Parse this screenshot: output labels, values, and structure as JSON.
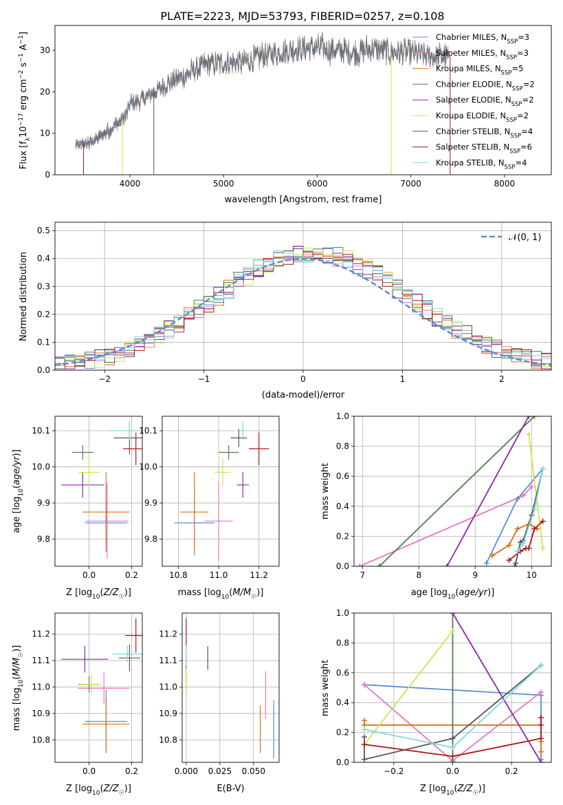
{
  "figure": {
    "title": "PLATE=2223, MJD=53793, FIBERID=0257, z=0.108"
  },
  "colors": {
    "chabrier_miles": "#5b8bd8",
    "salpeter_miles": "#e377c2",
    "kroupa_miles": "#e06b12",
    "chabrier_elodie": "#4a7f4a",
    "salpeter_elodie": "#8e24aa",
    "kroupa_elodie": "#cde44a",
    "chabrier_stelib": "#555555",
    "salpeter_stelib": "#b01515",
    "kroupa_stelib": "#7fd8dc",
    "model_default": "#e06b12",
    "data_line": "#777777",
    "normal_curve": "#5b8bd8"
  },
  "chart_data": [
    {
      "id": "spectrum",
      "type": "line",
      "title": "PLATE=2223, MJD=53793, FIBERID=0257, z=0.108",
      "xlabel": "wavelength [Angstrom, rest frame]",
      "ylabel": "Flux [f_λ 10^-17 erg cm^-2 s^-1 A^-1]",
      "xlim": [
        3200,
        8500
      ],
      "ylim": [
        0,
        36
      ],
      "xticks": [
        4000,
        5000,
        6000,
        7000,
        8000
      ],
      "yticks": [
        0,
        10,
        20,
        30
      ],
      "grid": false,
      "legend_position": "top-right",
      "continuum": {
        "x": [
          3420,
          3600,
          3800,
          3950,
          4000,
          4200,
          4400,
          4600,
          4800,
          5000,
          5200,
          5400,
          5600,
          5800,
          6000,
          6200,
          6400,
          6600,
          6800,
          7000,
          7200,
          7300,
          7400
        ],
        "y": [
          7,
          8,
          11,
          14,
          17,
          19,
          22,
          24,
          26.5,
          27,
          27,
          28.5,
          29.5,
          30.5,
          30.5,
          30,
          29.5,
          30.5,
          29.5,
          29.5,
          28.5,
          28.5,
          28.5
        ]
      },
      "series": [
        {
          "name": "Chabrier MILES, N_SSP=3",
          "label_main": "Chabrier MILES, N",
          "label_sub": "SSP",
          "label_tail": "=3",
          "color_key": "chabrier_miles"
        },
        {
          "name": "Salpeter MILES, N_SSP=3",
          "label_main": "Salpeter MILES, N",
          "label_sub": "SSP",
          "label_tail": "=3",
          "color_key": "salpeter_miles"
        },
        {
          "name": "Kroupa MILES, N_SSP=5",
          "label_main": "Kroupa MILES, N",
          "label_sub": "SSP",
          "label_tail": "=5",
          "color_key": "kroupa_miles"
        },
        {
          "name": "Chabrier ELODIE, N_SSP=2",
          "label_main": "Chabrier ELODIE, N",
          "label_sub": "SSP",
          "label_tail": "=2",
          "color_key": "chabrier_elodie"
        },
        {
          "name": "Salpeter ELODIE, N_SSP=2",
          "label_main": "Salpeter ELODIE, N",
          "label_sub": "SSP",
          "label_tail": "=2",
          "color_key": "salpeter_elodie"
        },
        {
          "name": "Kroupa ELODIE, N_SSP=2",
          "label_main": "Kroupa ELODIE, N",
          "label_sub": "SSP",
          "label_tail": "=2",
          "color_key": "kroupa_elodie"
        },
        {
          "name": "Chabrier STELIB, N_SSP=4",
          "label_main": "Chabrier STELIB, N",
          "label_sub": "SSP",
          "label_tail": "=4",
          "color_key": "chabrier_stelib"
        },
        {
          "name": "Salpeter STELIB, N_SSP=6",
          "label_main": "Salpeter STELIB, N",
          "label_sub": "SSP",
          "label_tail": "=6",
          "color_key": "salpeter_stelib"
        },
        {
          "name": "Kroupa STELIB, N_SSP=4",
          "label_main": "Kroupa STELIB, N",
          "label_sub": "SSP",
          "label_tail": "=4",
          "color_key": "kroupa_stelib"
        }
      ]
    },
    {
      "id": "residuals",
      "type": "line",
      "xlabel": "(data-model)/error",
      "ylabel": "Normed distribution",
      "xlim": [
        -2.5,
        2.5
      ],
      "ylim": [
        0,
        0.53
      ],
      "xticks": [
        -2,
        -1,
        0,
        1,
        2
      ],
      "yticks": [
        0.0,
        0.1,
        0.2,
        0.3,
        0.4,
        0.5
      ],
      "grid": true,
      "legend_position": "top-right",
      "normal_label": "𝒩(0, 1)",
      "bin_width": 0.1
    },
    {
      "id": "age_vs_Z",
      "type": "scatter",
      "xlabel": "Z [log10(Z/Z☉)]",
      "ylabel": "age [log10(age/yr)]",
      "xlim": [
        -0.16,
        0.25
      ],
      "ylim": [
        9.725,
        10.14
      ],
      "xticks": [
        0.0,
        0.2
      ],
      "yticks": [
        9.8,
        9.9,
        10.0,
        10.1
      ],
      "grid": true,
      "points": [
        {
          "color_key": "chabrier_miles",
          "x": 0.08,
          "xerr": 0.1,
          "y": 9.845,
          "yerr": 0.055
        },
        {
          "color_key": "salpeter_miles",
          "x": 0.085,
          "xerr": 0.1,
          "y": 9.85,
          "yerr": 0.105
        },
        {
          "color_key": "kroupa_miles",
          "x": 0.08,
          "xerr": 0.11,
          "y": 9.875,
          "yerr": 0.11
        },
        {
          "color_key": "chabrier_elodie",
          "x": -0.03,
          "xerr": 0.05,
          "y": 10.04,
          "yerr": 0.02
        },
        {
          "color_key": "salpeter_elodie",
          "x": -0.03,
          "xerr": 0.1,
          "y": 9.95,
          "yerr": 0.035
        },
        {
          "color_key": "kroupa_elodie",
          "x": 0.0,
          "xerr": 0.05,
          "y": 9.985,
          "yerr": 0.04
        },
        {
          "color_key": "chabrier_stelib",
          "x": 0.19,
          "xerr": 0.075,
          "y": 10.08,
          "yerr": 0.045
        },
        {
          "color_key": "salpeter_stelib",
          "x": 0.22,
          "xerr": 0.06,
          "y": 10.05,
          "yerr": 0.045
        },
        {
          "color_key": "kroupa_stelib",
          "x": 0.19,
          "xerr": 0.1,
          "y": 10.1,
          "yerr": 0.025
        }
      ]
    },
    {
      "id": "age_vs_mass",
      "type": "scatter",
      "xlabel": "mass [log10(M/M☉)]",
      "ylabel": "",
      "xlim": [
        10.72,
        11.3
      ],
      "ylim": [
        9.725,
        10.14
      ],
      "xticks": [
        10.8,
        11.0,
        11.2
      ],
      "yticks": [
        9.8,
        9.9,
        10.0,
        10.1
      ],
      "grid": true,
      "points": [
        {
          "color_key": "chabrier_miles",
          "x": 10.88,
          "xerr": 0.1,
          "y": 9.845,
          "yerr": 0.09
        },
        {
          "color_key": "salpeter_miles",
          "x": 11.0,
          "xerr": 0.07,
          "y": 9.85,
          "yerr": 0.11
        },
        {
          "color_key": "kroupa_miles",
          "x": 10.88,
          "xerr": 0.07,
          "y": 9.875,
          "yerr": 0.11
        },
        {
          "color_key": "chabrier_elodie",
          "x": 11.05,
          "xerr": 0.05,
          "y": 10.04,
          "yerr": 0.02
        },
        {
          "color_key": "salpeter_elodie",
          "x": 11.12,
          "xerr": 0.03,
          "y": 9.95,
          "yerr": 0.035
        },
        {
          "color_key": "kroupa_elodie",
          "x": 11.02,
          "xerr": 0.04,
          "y": 9.985,
          "yerr": 0.04
        },
        {
          "color_key": "chabrier_stelib",
          "x": 11.1,
          "xerr": 0.04,
          "y": 10.08,
          "yerr": 0.025
        },
        {
          "color_key": "salpeter_stelib",
          "x": 11.2,
          "xerr": 0.05,
          "y": 10.05,
          "yerr": 0.045
        },
        {
          "color_key": "kroupa_stelib",
          "x": 11.12,
          "xerr": 0.02,
          "y": 10.1,
          "yerr": 0.025
        }
      ]
    },
    {
      "id": "weight_vs_age",
      "type": "line",
      "xlabel": "age [log10(age/yr)]",
      "ylabel": "mass weight",
      "xlim": [
        6.85,
        10.35
      ],
      "ylim": [
        0,
        1
      ],
      "xticks": [
        7,
        8,
        9,
        10
      ],
      "yticks": [
        0.0,
        0.2,
        0.4,
        0.6,
        0.8,
        1.0
      ],
      "grid": true,
      "series": [
        {
          "color_key": "salpeter_miles",
          "x": [
            6.95,
            9.85,
            10.0
          ],
          "y": [
            0.0,
            0.47,
            0.53
          ]
        },
        {
          "color_key": "chabrier_miles",
          "x": [
            9.2,
            9.75,
            10.2
          ],
          "y": [
            0.02,
            0.45,
            0.65
          ]
        },
        {
          "color_key": "kroupa_miles",
          "x": [
            9.3,
            9.6,
            9.75,
            9.95,
            10.1
          ],
          "y": [
            0.07,
            0.14,
            0.25,
            0.28,
            0.25
          ]
        },
        {
          "color_key": "chabrier_elodie",
          "x": [
            7.3,
            10.05
          ],
          "y": [
            0.0,
            1.0
          ]
        },
        {
          "color_key": "salpeter_elodie",
          "x": [
            8.5,
            9.95
          ],
          "y": [
            0.0,
            1.0
          ]
        },
        {
          "color_key": "kroupa_elodie",
          "x": [
            9.95,
            10.2
          ],
          "y": [
            0.88,
            0.12
          ]
        },
        {
          "color_key": "chabrier_stelib",
          "x": [
            9.7,
            9.72,
            9.8,
            9.85,
            10.0,
            10.2
          ],
          "y": [
            0.0,
            0.02,
            0.16,
            0.17,
            0.34,
            0.65
          ]
        },
        {
          "color_key": "salpeter_stelib",
          "x": [
            9.6,
            9.8,
            9.9,
            9.95,
            10.05,
            10.2
          ],
          "y": [
            0.04,
            0.1,
            0.12,
            0.12,
            0.25,
            0.3
          ]
        },
        {
          "color_key": "kroupa_stelib",
          "x": [
            9.75,
            9.85,
            10.05,
            10.2
          ],
          "y": [
            0.1,
            0.15,
            0.38,
            0.65
          ]
        }
      ]
    },
    {
      "id": "mass_vs_Z",
      "type": "scatter",
      "xlabel": "Z [log10(Z/Z☉)]",
      "ylabel": "mass [log10(M/M☉)]",
      "xlim": [
        -0.16,
        0.25
      ],
      "ylim": [
        10.715,
        11.28
      ],
      "xticks": [
        0.0,
        0.2
      ],
      "yticks": [
        10.8,
        10.9,
        11.0,
        11.1,
        11.2
      ],
      "grid": true,
      "points": [
        {
          "color_key": "chabrier_miles",
          "x": 0.08,
          "xerr": 0.1,
          "y": 10.87,
          "yerr": 0.12
        },
        {
          "color_key": "salpeter_miles",
          "x": 0.07,
          "xerr": 0.12,
          "y": 10.995,
          "yerr": 0.06
        },
        {
          "color_key": "kroupa_miles",
          "x": 0.08,
          "xerr": 0.11,
          "y": 10.86,
          "yerr": 0.1
        },
        {
          "color_key": "chabrier_elodie",
          "x": 0.0,
          "xerr": 0.05,
          "y": 11.01,
          "yerr": 0.03
        },
        {
          "color_key": "salpeter_elodie",
          "x": -0.02,
          "xerr": 0.11,
          "y": 11.105,
          "yerr": 0.05
        },
        {
          "color_key": "kroupa_elodie",
          "x": 0.01,
          "xerr": 0.05,
          "y": 11.01,
          "yerr": 0.035
        },
        {
          "color_key": "chabrier_stelib",
          "x": 0.19,
          "xerr": 0.05,
          "y": 11.11,
          "yerr": 0.05
        },
        {
          "color_key": "salpeter_stelib",
          "x": 0.22,
          "xerr": 0.05,
          "y": 11.195,
          "yerr": 0.065
        },
        {
          "color_key": "kroupa_stelib",
          "x": 0.18,
          "xerr": 0.07,
          "y": 11.125,
          "yerr": 0.03
        }
      ]
    },
    {
      "id": "mass_vs_ebv",
      "type": "scatter",
      "xlabel": "E(B-V)",
      "ylabel": "",
      "xlim": [
        -0.003,
        0.069
      ],
      "ylim": [
        10.715,
        11.28
      ],
      "xticks": [
        0.0,
        0.025,
        0.05
      ],
      "yticks": [
        10.8,
        10.9,
        11.0,
        11.1,
        11.2
      ],
      "grid": true,
      "points": [
        {
          "color_key": "chabrier_miles",
          "x": 0.065,
          "xerr": 0,
          "y": 10.84,
          "yerr": 0.11
        },
        {
          "color_key": "salpeter_miles",
          "x": 0.059,
          "xerr": 0,
          "y": 10.97,
          "yerr": 0.09
        },
        {
          "color_key": "kroupa_miles",
          "x": 0.055,
          "xerr": 0,
          "y": 10.84,
          "yerr": 0.09
        },
        {
          "color_key": "chabrier_elodie",
          "x": 0.0,
          "xerr": 0,
          "y": 11.04,
          "yerr": 0.05
        },
        {
          "color_key": "salpeter_elodie",
          "x": 0.0,
          "xerr": 0,
          "y": 11.1,
          "yerr": 0.02
        },
        {
          "color_key": "kroupa_elodie",
          "x": 0.0,
          "xerr": 0,
          "y": 11.02,
          "yerr": 0.05
        },
        {
          "color_key": "chabrier_stelib",
          "x": 0.016,
          "xerr": 0,
          "y": 11.11,
          "yerr": 0.045
        },
        {
          "color_key": "salpeter_stelib",
          "x": 0.0,
          "xerr": 0,
          "y": 11.2,
          "yerr": 0.06
        },
        {
          "color_key": "kroupa_stelib",
          "x": 0.0,
          "xerr": 0,
          "y": 11.12,
          "yerr": 0.04
        }
      ]
    },
    {
      "id": "weight_vs_Z",
      "type": "line",
      "xlabel": "Z [log10(Z/Z☉)]",
      "ylabel": "mass weight",
      "xlim": [
        -0.335,
        0.335
      ],
      "ylim": [
        0,
        1
      ],
      "xticks": [
        -0.2,
        0.0,
        0.2
      ],
      "yticks": [
        0.0,
        0.2,
        0.4,
        0.6,
        0.8,
        1.0
      ],
      "grid": true,
      "series": [
        {
          "color_key": "chabrier_miles",
          "x": [
            -0.3,
            0.3,
            0.3
          ],
          "y": [
            0.52,
            0.45,
            0.02
          ]
        },
        {
          "color_key": "salpeter_miles",
          "x": [
            -0.3,
            0.0,
            0.3
          ],
          "y": [
            0.52,
            0.01,
            0.47
          ]
        },
        {
          "color_key": "kroupa_miles",
          "x": [
            -0.3,
            -0.3,
            0.3,
            0.3,
            0.3
          ],
          "y": [
            0.28,
            0.25,
            0.25,
            0.07,
            0.14
          ]
        },
        {
          "color_key": "chabrier_elodie",
          "x": [
            0.0,
            0.0
          ],
          "y": [
            1.0,
            0.0
          ]
        },
        {
          "color_key": "salpeter_elodie",
          "x": [
            0.0,
            0.3
          ],
          "y": [
            1.0,
            0.0
          ]
        },
        {
          "color_key": "kroupa_elodie",
          "x": [
            -0.3,
            0.0
          ],
          "y": [
            0.12,
            0.88
          ]
        },
        {
          "color_key": "chabrier_stelib",
          "x": [
            -0.3,
            -0.3,
            0.0,
            0.3
          ],
          "y": [
            0.17,
            0.02,
            0.16,
            0.65
          ]
        },
        {
          "color_key": "salpeter_stelib",
          "x": [
            -0.3,
            0.0,
            0.3,
            0.3,
            0.3
          ],
          "y": [
            0.12,
            0.04,
            0.16,
            0.3,
            0.25
          ]
        },
        {
          "color_key": "kroupa_stelib",
          "x": [
            -0.3,
            0.0,
            0.3
          ],
          "y": [
            0.22,
            0.1,
            0.65
          ]
        }
      ]
    }
  ]
}
